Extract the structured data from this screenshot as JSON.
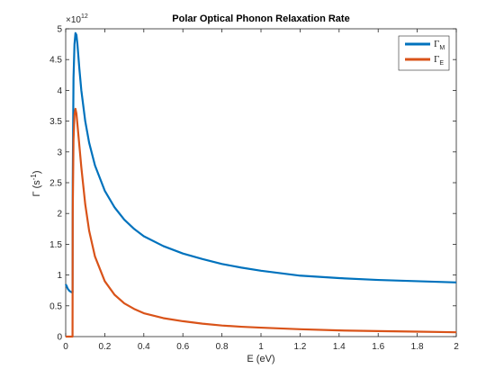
{
  "chart_data": {
    "type": "line",
    "title": "Polar Optical Phonon Relaxation Rate",
    "xlabel": "E (eV)",
    "ylabel": {
      "main": "Γ (s",
      "sup": "-1",
      "close": ")"
    },
    "y_multiplier": {
      "base": "×10",
      "exponent": "12"
    },
    "xlim": [
      0,
      2
    ],
    "ylim": [
      0,
      5
    ],
    "x_ticks": [
      0,
      0.2,
      0.4,
      0.6,
      0.8,
      1,
      1.2,
      1.4,
      1.6,
      1.8,
      2
    ],
    "x_tick_labels": [
      "0",
      "0.2",
      "0.4",
      "0.6",
      "0.8",
      "1",
      "1.2",
      "1.4",
      "1.6",
      "1.8",
      "2"
    ],
    "y_ticks": [
      0,
      0.5,
      1,
      1.5,
      2,
      2.5,
      3,
      3.5,
      4,
      4.5,
      5
    ],
    "y_tick_labels": [
      "0",
      "0.5",
      "1",
      "1.5",
      "2",
      "2.5",
      "3",
      "3.5",
      "4",
      "4.5",
      "5"
    ],
    "grid": false,
    "legend_position": "top-right",
    "series": [
      {
        "name": "Γ_M",
        "legend_main": "Γ",
        "legend_sub": "M",
        "color": "#0072BD",
        "x": [
          0,
          0.005,
          0.01,
          0.02,
          0.03,
          0.035,
          0.036,
          0.04,
          0.045,
          0.05,
          0.055,
          0.06,
          0.07,
          0.08,
          0.1,
          0.12,
          0.15,
          0.2,
          0.25,
          0.3,
          0.35,
          0.4,
          0.5,
          0.6,
          0.7,
          0.8,
          0.9,
          1.0,
          1.2,
          1.4,
          1.6,
          1.8,
          2.0
        ],
        "y": [
          0.85,
          0.82,
          0.78,
          0.74,
          0.72,
          0.72,
          2.5,
          4.2,
          4.75,
          4.93,
          4.9,
          4.75,
          4.35,
          4.0,
          3.5,
          3.15,
          2.78,
          2.37,
          2.1,
          1.9,
          1.75,
          1.63,
          1.47,
          1.35,
          1.26,
          1.18,
          1.12,
          1.07,
          0.99,
          0.95,
          0.92,
          0.9,
          0.88
        ]
      },
      {
        "name": "Γ_E",
        "legend_main": "Γ",
        "legend_sub": "E",
        "color": "#D95319",
        "x": [
          0,
          0.02,
          0.035,
          0.036,
          0.04,
          0.045,
          0.05,
          0.055,
          0.06,
          0.07,
          0.08,
          0.1,
          0.12,
          0.15,
          0.2,
          0.25,
          0.3,
          0.35,
          0.4,
          0.5,
          0.6,
          0.7,
          0.8,
          0.9,
          1.0,
          1.2,
          1.4,
          1.6,
          1.8,
          2.0
        ],
        "y": [
          0,
          0,
          0,
          2.0,
          3.2,
          3.6,
          3.7,
          3.62,
          3.45,
          3.1,
          2.75,
          2.15,
          1.72,
          1.3,
          0.9,
          0.68,
          0.54,
          0.45,
          0.38,
          0.3,
          0.25,
          0.21,
          0.18,
          0.16,
          0.145,
          0.12,
          0.1,
          0.09,
          0.08,
          0.07
        ]
      }
    ]
  }
}
